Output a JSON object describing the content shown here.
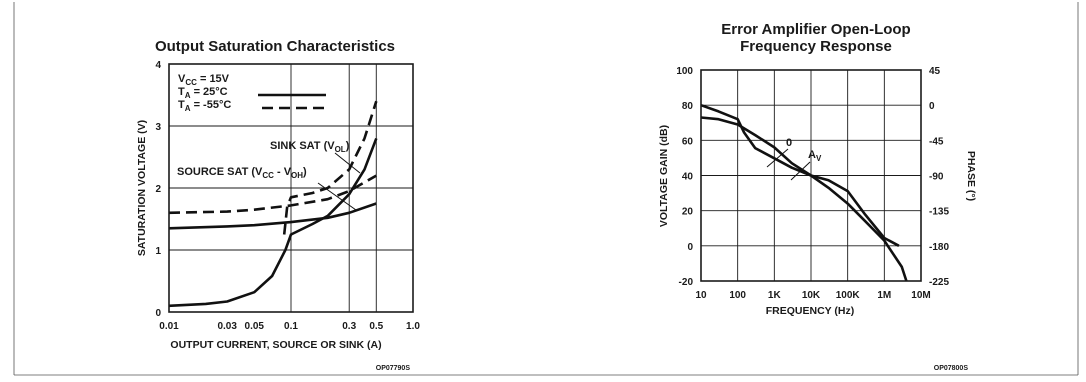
{
  "chart_data": [
    {
      "type": "line",
      "title": "Output Saturation Characteristics",
      "xlabel": "OUTPUT CURRENT, SOURCE OR SINK (A)",
      "ylabel": "SATURATION VOLTAGE (V)",
      "xscale": "log",
      "xlim": [
        0.01,
        1.0
      ],
      "ylim": [
        0,
        4
      ],
      "x_ticks": [
        "0.01",
        "0.03",
        "0.05",
        "0.1",
        "0.3",
        "0.5",
        "1.0"
      ],
      "x_tick_values": [
        0.01,
        0.03,
        0.05,
        0.1,
        0.3,
        0.5,
        1.0
      ],
      "y_ticks": [
        "0",
        "1",
        "2",
        "3",
        "4"
      ],
      "y_tick_values": [
        0,
        1,
        2,
        3,
        4
      ],
      "grid": true,
      "legend": {
        "placement": "top-left",
        "vcc": {
          "main": "V",
          "sub": "CC",
          "rest": " = 15V"
        },
        "ta_solid": {
          "main": "T",
          "sub": "A",
          "rest": "  = 25°C"
        },
        "ta_dashed": {
          "main": "T",
          "sub": "A",
          "rest": "  = -55°C"
        }
      },
      "annotations": {
        "sink": {
          "pre": "SINK SAT (V",
          "sub": "OL",
          "post": ")"
        },
        "source": {
          "pre": "SOURCE SAT (V",
          "sub1": "CC",
          "mid": " - V",
          "sub2": "OH",
          "post": ")"
        }
      },
      "series": [
        {
          "style": "solid",
          "curve": "source-sat",
          "x": [
            0.01,
            0.03,
            0.05,
            0.1,
            0.2,
            0.3,
            0.5
          ],
          "y": [
            1.35,
            1.38,
            1.4,
            1.45,
            1.52,
            1.6,
            1.75
          ]
        },
        {
          "style": "dashed",
          "curve": "source-sat",
          "x": [
            0.01,
            0.03,
            0.05,
            0.1,
            0.2,
            0.3,
            0.5
          ],
          "y": [
            1.6,
            1.62,
            1.65,
            1.72,
            1.82,
            1.95,
            2.2
          ]
        },
        {
          "style": "solid",
          "curve": "sink-sat",
          "x": [
            0.01,
            0.02,
            0.03,
            0.05,
            0.07,
            0.09,
            0.1,
            0.15,
            0.2,
            0.3,
            0.4,
            0.5
          ],
          "y": [
            0.1,
            0.13,
            0.17,
            0.32,
            0.58,
            1.0,
            1.25,
            1.42,
            1.55,
            1.9,
            2.3,
            2.8
          ]
        },
        {
          "style": "dashed",
          "curve": "sink-sat",
          "x": [
            0.088,
            0.093,
            0.1,
            0.15,
            0.2,
            0.3,
            0.4,
            0.5
          ],
          "y": [
            1.25,
            1.7,
            1.85,
            1.92,
            2.0,
            2.3,
            2.8,
            3.4
          ]
        }
      ],
      "code": "OP07790S"
    },
    {
      "type": "line",
      "title": "Error Amplifier Open-Loop",
      "subtitle": "Frequency Response",
      "xlabel": "FREQUENCY (Hz)",
      "ylabel": "VOLTAGE GAIN (dB)",
      "y2label": "PHASE (°)",
      "xscale": "log",
      "xlim": [
        10,
        10000000
      ],
      "ylim": [
        -20,
        100
      ],
      "y2lim": [
        -225,
        45
      ],
      "x_ticks": [
        "10",
        "100",
        "1K",
        "10K",
        "100K",
        "1M",
        "10M"
      ],
      "x_tick_values": [
        10,
        100,
        1000,
        10000,
        100000,
        1000000,
        10000000
      ],
      "y_ticks": [
        "100",
        "80",
        "60",
        "40",
        "20",
        "0",
        "-20"
      ],
      "y_tick_values": [
        100,
        80,
        60,
        40,
        20,
        0,
        -20
      ],
      "y2_ticks": [
        "45",
        "0",
        "-45",
        "-90",
        "-135",
        "-180",
        "-225"
      ],
      "y2_tick_values": [
        45,
        0,
        -45,
        -90,
        -135,
        -180,
        -225
      ],
      "grid": true,
      "annotations": {
        "phase": {
          "text": "0"
        },
        "gain": {
          "main": "A",
          "sub": "V"
        }
      },
      "series": [
        {
          "curve": "gain",
          "x": [
            10,
            30,
            100,
            300,
            1000,
            3000,
            10000,
            30000,
            100000,
            300000,
            1000000,
            3000000,
            4000000
          ],
          "y": [
            73,
            72,
            69,
            63,
            56,
            47,
            40,
            33,
            24,
            14,
            3,
            -12,
            -20
          ]
        },
        {
          "curve": "phase",
          "x": [
            10,
            30,
            100,
            150,
            300,
            1000,
            3000,
            10000,
            30000,
            100000,
            300000,
            1000000,
            2500000
          ],
          "y2": [
            0,
            -8,
            -18,
            -35,
            -55,
            -68,
            -80,
            -90,
            -96,
            -110,
            -140,
            -170,
            -180
          ]
        }
      ],
      "code": "OP07800S"
    }
  ]
}
